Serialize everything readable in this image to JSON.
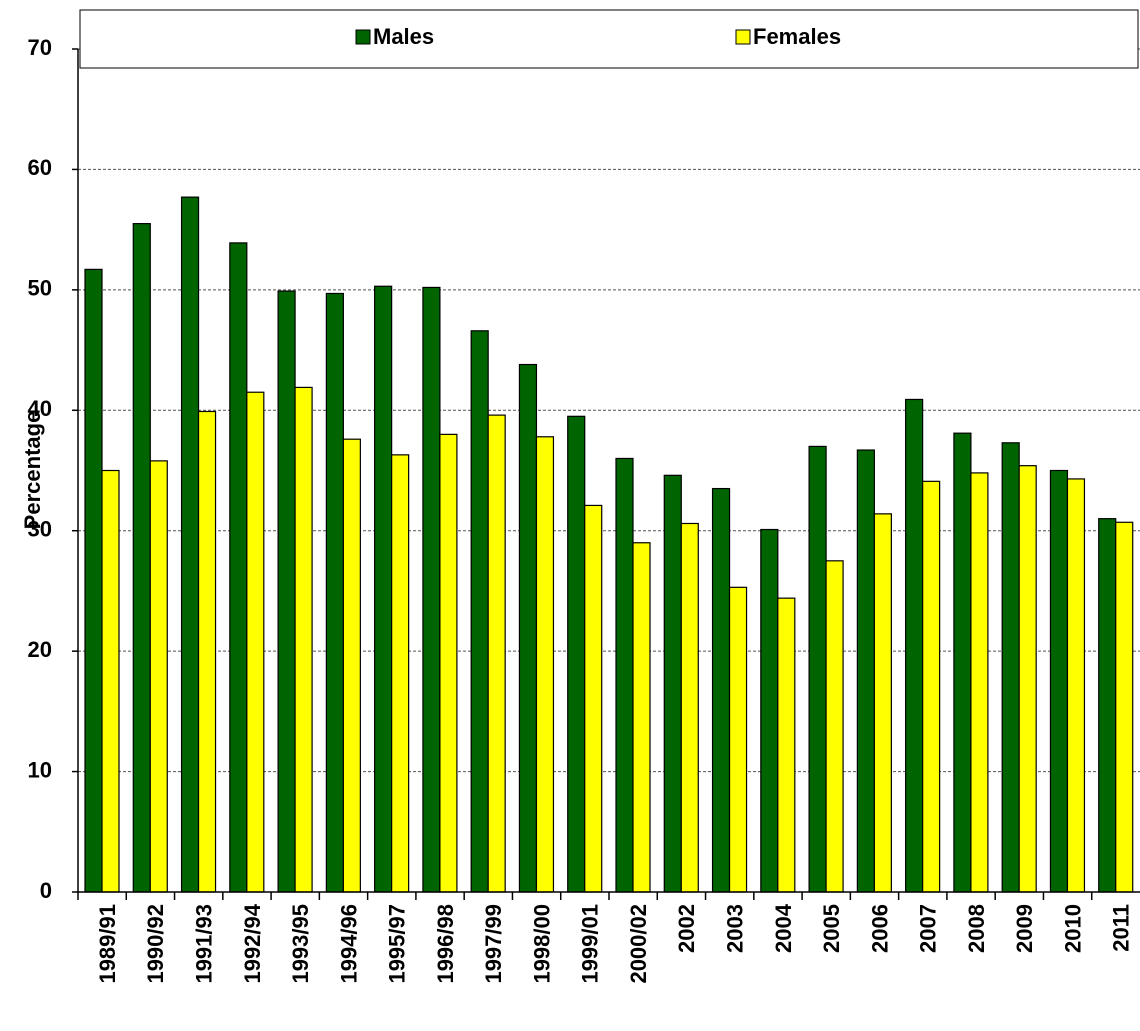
{
  "chart_data": {
    "type": "bar",
    "y_label": "Percentage",
    "categories": [
      "1989/91",
      "1990/92",
      "1991/93",
      "1992/94",
      "1993/95",
      "1994/96",
      "1995/97",
      "1996/98",
      "1997/99",
      "1998/00",
      "1999/01",
      "2000/02",
      "2002",
      "2003",
      "2004",
      "2005",
      "2006",
      "2007",
      "2008",
      "2009",
      "2010",
      "2011"
    ],
    "series": [
      {
        "name": "Males",
        "color": "#006400",
        "values": [
          51.7,
          55.5,
          57.7,
          53.9,
          49.9,
          49.7,
          50.3,
          50.2,
          46.6,
          43.8,
          39.5,
          36.0,
          34.6,
          33.5,
          30.1,
          37.0,
          36.7,
          40.9,
          38.1,
          37.3,
          35.0,
          31.0
        ]
      },
      {
        "name": "Females",
        "color": "#ffff00",
        "values": [
          35.0,
          35.8,
          39.9,
          41.5,
          41.9,
          37.6,
          36.3,
          38.0,
          39.6,
          37.8,
          32.1,
          29.0,
          30.6,
          25.3,
          24.4,
          27.5,
          31.4,
          34.1,
          34.8,
          35.4,
          34.3,
          30.7
        ]
      }
    ],
    "ylim": [
      0,
      70
    ],
    "yticks": [
      0,
      10,
      20,
      30,
      40,
      50,
      60,
      70
    ],
    "grid": true
  }
}
